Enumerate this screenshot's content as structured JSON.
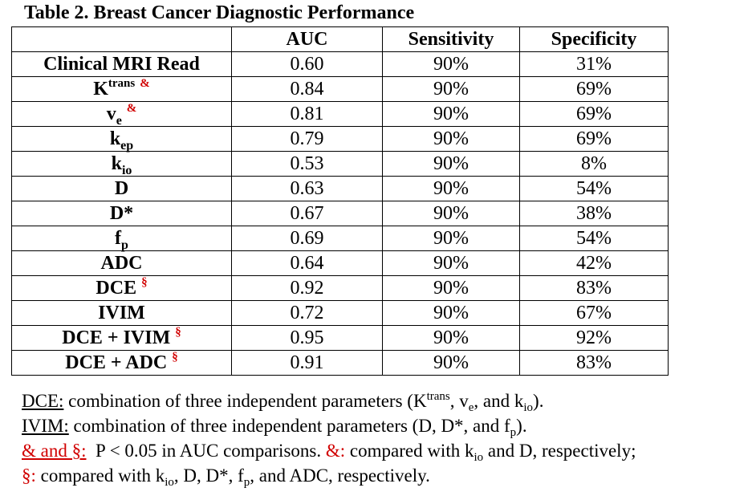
{
  "title": "Table 2.  Breast Cancer Diagnostic Performance",
  "table": {
    "headers": [
      "",
      "AUC",
      "Sensitivity",
      "Specificity"
    ],
    "rows": [
      {
        "name": "Clinical MRI Read",
        "auc": "0.60",
        "sensitivity": "90%",
        "specificity": "31%"
      },
      {
        "base": "K",
        "sup": "trans",
        "marker": "&",
        "auc": "0.84",
        "sensitivity": "90%",
        "specificity": "69%"
      },
      {
        "base": "v",
        "sub": "e",
        "marker": "&",
        "auc": "0.81",
        "sensitivity": "90%",
        "specificity": "69%"
      },
      {
        "base": "k",
        "sub": "ep",
        "auc": "0.79",
        "sensitivity": "90%",
        "specificity": "69%"
      },
      {
        "base": "k",
        "sub": "io",
        "auc": "0.53",
        "sensitivity": "90%",
        "specificity": "8%"
      },
      {
        "name": "D",
        "auc": "0.63",
        "sensitivity": "90%",
        "specificity": "54%"
      },
      {
        "name": "D*",
        "auc": "0.67",
        "sensitivity": "90%",
        "specificity": "38%"
      },
      {
        "base": "f",
        "sub": "p",
        "auc": "0.69",
        "sensitivity": "90%",
        "specificity": "54%"
      },
      {
        "name": "ADC",
        "auc": "0.64",
        "sensitivity": "90%",
        "specificity": "42%"
      },
      {
        "name": "DCE",
        "marker": "§",
        "auc": "0.92",
        "sensitivity": "90%",
        "specificity": "83%"
      },
      {
        "name": "IVIM",
        "auc": "0.72",
        "sensitivity": "90%",
        "specificity": "67%"
      },
      {
        "name": "DCE + IVIM",
        "marker": "§",
        "auc": "0.95",
        "sensitivity": "90%",
        "specificity": "92%"
      },
      {
        "name": "DCE + ADC",
        "marker": "§",
        "auc": "0.91",
        "sensitivity": "90%",
        "specificity": "83%"
      }
    ]
  },
  "notes": {
    "dce": {
      "term": "DCE:",
      "text1": " combination of three independent parameters (K",
      "sup1": "trans",
      "text2": ", v",
      "sub1": "e",
      "text3": ", and k",
      "sub2": "io",
      "text4": ")."
    },
    "ivim": {
      "term": "IVIM:",
      "text1": " combination of three independent parameters (D, D*, and f",
      "sub1": "p",
      "text2": ")."
    },
    "sig": {
      "term": "& and §:",
      "text1": "  P < 0.05 in AUC comparisons. ",
      "amp": "&:",
      "text2": " compared with k",
      "sub1": "io",
      "text3": " and D, respectively;"
    },
    "sect": {
      "mark": "§:",
      "text1": " compared with k",
      "sub1": "io",
      "text2": ", D, D*, f",
      "sub2": "p",
      "text3": ", and ADC, respectively."
    }
  },
  "colors": {
    "accent_red": "#d10000",
    "text": "#000000",
    "background": "#ffffff"
  }
}
